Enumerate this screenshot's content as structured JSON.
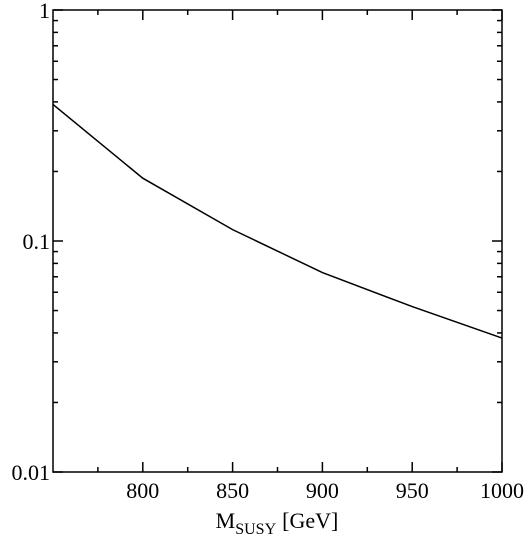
{
  "chart_data": {
    "type": "line",
    "log_y": true,
    "xlabel": "M",
    "xlabel_sub": "SUSY",
    "xlabel_unit": "[GeV]",
    "x": [
      750,
      800,
      850,
      900,
      950,
      1000
    ],
    "series": [
      {
        "color": "#000000",
        "values": [
          0.39,
          0.187,
          0.112,
          0.073,
          0.052,
          0.038
        ]
      }
    ],
    "xlim": [
      750,
      1000
    ],
    "xticks": [
      800,
      850,
      900,
      950,
      1000
    ],
    "xminorticks": [
      775,
      825,
      875,
      925,
      975
    ],
    "ylim": [
      0.01,
      1
    ],
    "yticks": [
      0.01,
      0.1,
      1
    ],
    "yminorticks": [
      0.02,
      0.03,
      0.04,
      0.05,
      0.06,
      0.07,
      0.08,
      0.09,
      0.2,
      0.3,
      0.4,
      0.5,
      0.6,
      0.7,
      0.8,
      0.9
    ]
  }
}
